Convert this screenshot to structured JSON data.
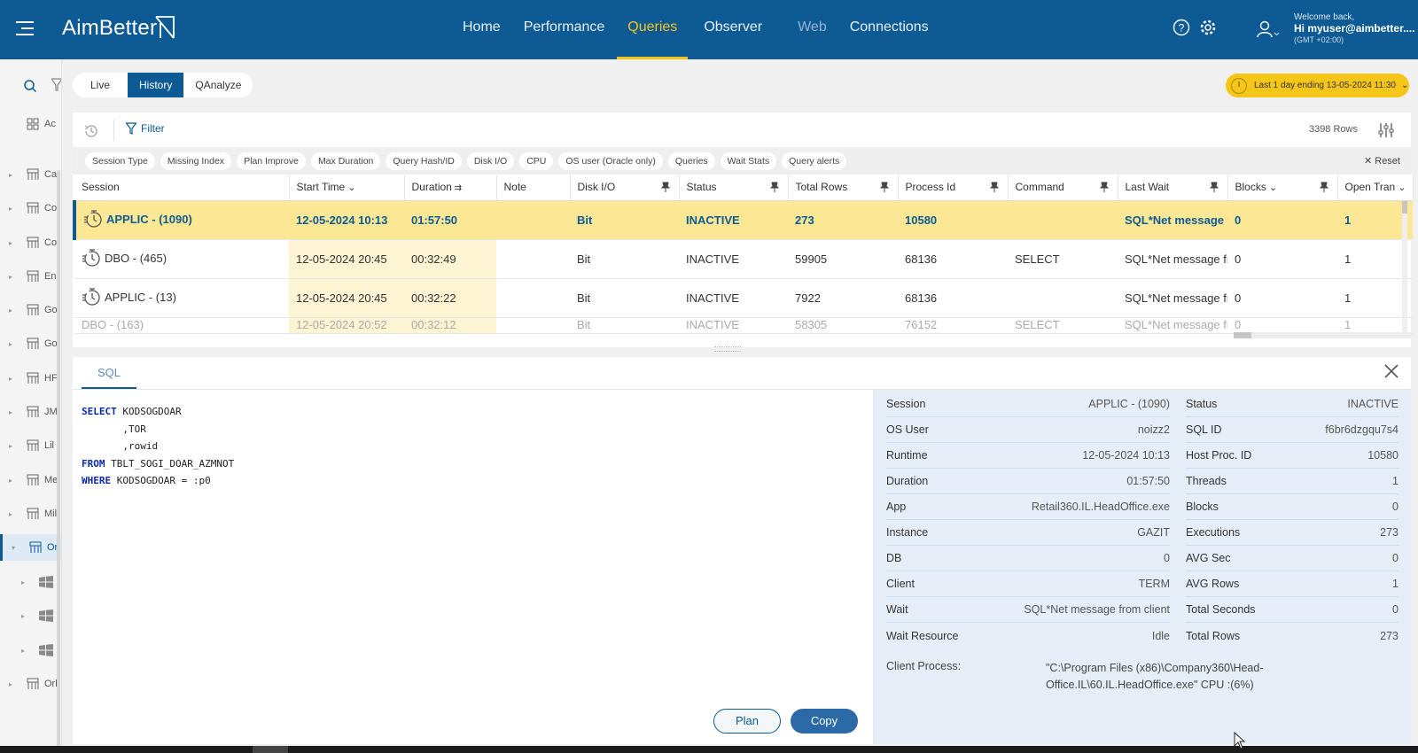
{
  "app": {
    "brand": "AimBetter",
    "nav": [
      {
        "label": "Home",
        "state": "normal"
      },
      {
        "label": "Performance",
        "state": "normal"
      },
      {
        "label": "Queries",
        "state": "active"
      },
      {
        "label": "Observer",
        "state": "normal"
      },
      {
        "label": "Web",
        "state": "dim"
      },
      {
        "label": "Connections",
        "state": "normal"
      }
    ],
    "user": {
      "greeting": "Welcome back,",
      "name": "Hi myuser@aimbetter....",
      "tz": "(GMT +02:00)"
    },
    "colors": {
      "brand": "#0d5a94",
      "accent": "#f5c518",
      "selected_row": "#fce894"
    }
  },
  "sidebar": {
    "items": [
      {
        "label": "Ac",
        "icon": "grid-icon",
        "active": false,
        "has_arrow": false
      },
      {
        "label": "Ca",
        "icon": "server-icon",
        "active": false,
        "has_arrow": true
      },
      {
        "label": "Co",
        "icon": "server-icon",
        "active": false,
        "has_arrow": true
      },
      {
        "label": "Co",
        "icon": "server-icon",
        "active": false,
        "has_arrow": true
      },
      {
        "label": "En",
        "icon": "server-icon",
        "active": false,
        "has_arrow": true
      },
      {
        "label": "Go",
        "icon": "server-icon",
        "active": false,
        "has_arrow": true
      },
      {
        "label": "Go",
        "icon": "server-icon",
        "active": false,
        "has_arrow": true
      },
      {
        "label": "HF",
        "icon": "server-icon",
        "active": false,
        "has_arrow": true
      },
      {
        "label": "JM",
        "icon": "server-icon",
        "active": false,
        "has_arrow": true
      },
      {
        "label": "Lil",
        "icon": "server-icon",
        "active": false,
        "has_arrow": true
      },
      {
        "label": "Me",
        "icon": "server-icon",
        "active": false,
        "has_arrow": true
      },
      {
        "label": "Mil",
        "icon": "server-icon",
        "active": false,
        "has_arrow": true
      },
      {
        "label": "Or",
        "icon": "server-icon",
        "active": true,
        "has_arrow": true
      },
      {
        "label": "",
        "icon": "windows-icon",
        "active": false,
        "has_arrow": true
      },
      {
        "label": "",
        "icon": "windows-icon",
        "active": false,
        "has_arrow": true
      },
      {
        "label": "",
        "icon": "windows-icon",
        "active": false,
        "has_arrow": true
      },
      {
        "label": "Orl",
        "icon": "server-icon",
        "active": false,
        "has_arrow": true
      }
    ]
  },
  "modes": [
    {
      "label": "Live",
      "active": false
    },
    {
      "label": "History",
      "active": true
    },
    {
      "label": "QAnalyze",
      "active": false
    }
  ],
  "timeframe": {
    "label": "Last 1 day ending  13-05-2024 11:30"
  },
  "toolbar": {
    "filter_label": "Filter",
    "rows_count": "3398 Rows",
    "reset_label": "Reset"
  },
  "chips": [
    "Session Type",
    "Missing Index",
    "Plan Improve",
    "Max Duration",
    "Query Hash/ID",
    "Disk I/O",
    "CPU",
    "OS user (Oracle only)",
    "Queries",
    "Wait Stats",
    "Query alerts"
  ],
  "grid": {
    "columns": [
      {
        "label": "Session",
        "width": 242
      },
      {
        "label": "Start Time",
        "width": 130,
        "sort": "desc"
      },
      {
        "label": "Duration",
        "width": 104,
        "sort": "sorted"
      },
      {
        "label": "Note",
        "width": 83
      },
      {
        "label": "Disk I/O",
        "width": 123,
        "pin": true
      },
      {
        "label": "Status",
        "width": 123,
        "pin": true
      },
      {
        "label": "Total Rows",
        "width": 124,
        "pin": true
      },
      {
        "label": "Process Id",
        "width": 124,
        "pin": true
      },
      {
        "label": "Command",
        "width": 124,
        "pin": true
      },
      {
        "label": "Last Wait",
        "width": 124,
        "pin": true
      },
      {
        "label": "Blocks",
        "width": 124,
        "pin": true,
        "sort": "desc"
      },
      {
        "label": "Open Tran",
        "width": 85,
        "sort": "desc"
      }
    ],
    "rows": [
      {
        "session": "APPLIC - (1090)",
        "start": "12-05-2024 10:13",
        "duration": "01:57:50",
        "note": "",
        "disk": "Bit",
        "status": "INACTIVE",
        "total_rows": "273",
        "pid": "10580",
        "command": "",
        "last_wait": "SQL*Net message fr",
        "blocks": "0",
        "open_tran": "1",
        "selected": true
      },
      {
        "session": "DBO - (465)",
        "start": "12-05-2024 20:45",
        "duration": "00:32:49",
        "note": "",
        "disk": "Bit",
        "status": "INACTIVE",
        "total_rows": "59905",
        "pid": "68136",
        "command": "SELECT",
        "last_wait": "SQL*Net message fr",
        "blocks": "0",
        "open_tran": "1",
        "selected": false
      },
      {
        "session": "APPLIC - (13)",
        "start": "12-05-2024 20:45",
        "duration": "00:32:22",
        "note": "",
        "disk": "Bit",
        "status": "INACTIVE",
        "total_rows": "7922",
        "pid": "68136",
        "command": "",
        "last_wait": "SQL*Net message fr",
        "blocks": "0",
        "open_tran": "1",
        "selected": false
      },
      {
        "session": "DBO - (163)",
        "start": "12-05-2024 20:52",
        "duration": "00:32:12",
        "note": "",
        "disk": "Bit",
        "status": "INACTIVE",
        "total_rows": "58305",
        "pid": "76152",
        "command": "SELECT",
        "last_wait": "SQL*Net message fr",
        "blocks": "0",
        "open_tran": "1",
        "selected": false,
        "partial": true
      }
    ]
  },
  "detail": {
    "tab_label": "SQL",
    "sql_lines": [
      {
        "kw": "SELECT",
        "text": " KODSOGDOAR"
      },
      {
        "kw": "",
        "text": "       ,TOR"
      },
      {
        "kw": "",
        "text": "       ,rowid"
      },
      {
        "kw": "FROM",
        "text": " TBLT_SOGI_DOAR_AZMNOT"
      },
      {
        "kw": "WHERE",
        "text": " KODSOGDOAR = :p0"
      }
    ],
    "plan_label": "Plan",
    "copy_label": "Copy",
    "info_left": [
      {
        "k": "Session",
        "v": "APPLIC - (1090)"
      },
      {
        "k": "OS User",
        "v": "noizz2"
      },
      {
        "k": "Runtime",
        "v": "12-05-2024 10:13"
      },
      {
        "k": "Duration",
        "v": "01:57:50"
      },
      {
        "k": "App",
        "v": "Retail360.IL.HeadOffice.exe"
      },
      {
        "k": "Instance",
        "v": "GAZIT"
      },
      {
        "k": "DB",
        "v": "0"
      },
      {
        "k": "Client",
        "v": "TERM"
      },
      {
        "k": "Wait",
        "v": "SQL*Net message from client"
      },
      {
        "k": "Wait Resource",
        "v": "Idle"
      }
    ],
    "info_right": [
      {
        "k": "Status",
        "v": "INACTIVE"
      },
      {
        "k": "SQL ID",
        "v": "f6br6dzgqu7s4"
      },
      {
        "k": "Host Proc. ID",
        "v": "10580"
      },
      {
        "k": "Threads",
        "v": "1"
      },
      {
        "k": "Blocks",
        "v": "0"
      },
      {
        "k": "Executions",
        "v": "273"
      },
      {
        "k": "AVG Sec",
        "v": "0"
      },
      {
        "k": "AVG Rows",
        "v": "1"
      },
      {
        "k": "Total Seconds",
        "v": "0"
      },
      {
        "k": "Total Rows",
        "v": "273"
      }
    ],
    "client_process_label": "Client Process:",
    "client_process_value": "\"C:\\Program Files (x86)\\Company360\\Head-Office.IL\\60.IL.HeadOffice.exe\" CPU :(6%)"
  }
}
